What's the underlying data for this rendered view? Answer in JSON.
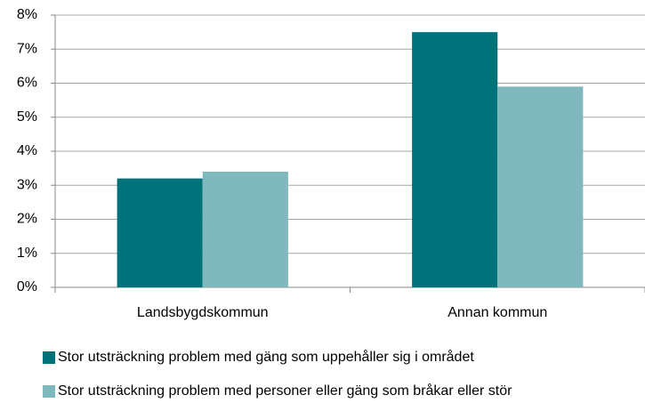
{
  "chart_data": {
    "type": "bar",
    "categories": [
      "Landsbygdskommun",
      "Annan kommun"
    ],
    "series": [
      {
        "name": "Stor utsträckning problem med gäng som uppehåller sig i området",
        "color": "#00737a",
        "values": [
          3.2,
          7.5
        ]
      },
      {
        "name": "Stor utsträckning problem med personer eller gäng som bråkar eller stör",
        "color": "#80b9bd",
        "values": [
          3.4,
          5.9
        ]
      }
    ],
    "ylim": [
      0,
      8
    ],
    "yticks": [
      {
        "value": 0,
        "label": "0%"
      },
      {
        "value": 1,
        "label": "1%"
      },
      {
        "value": 2,
        "label": "2%"
      },
      {
        "value": 3,
        "label": "3%"
      },
      {
        "value": 4,
        "label": "4%"
      },
      {
        "value": 5,
        "label": "5%"
      },
      {
        "value": 6,
        "label": "6%"
      },
      {
        "value": 7,
        "label": "7%"
      },
      {
        "value": 8,
        "label": "8%"
      }
    ],
    "grid": true
  }
}
